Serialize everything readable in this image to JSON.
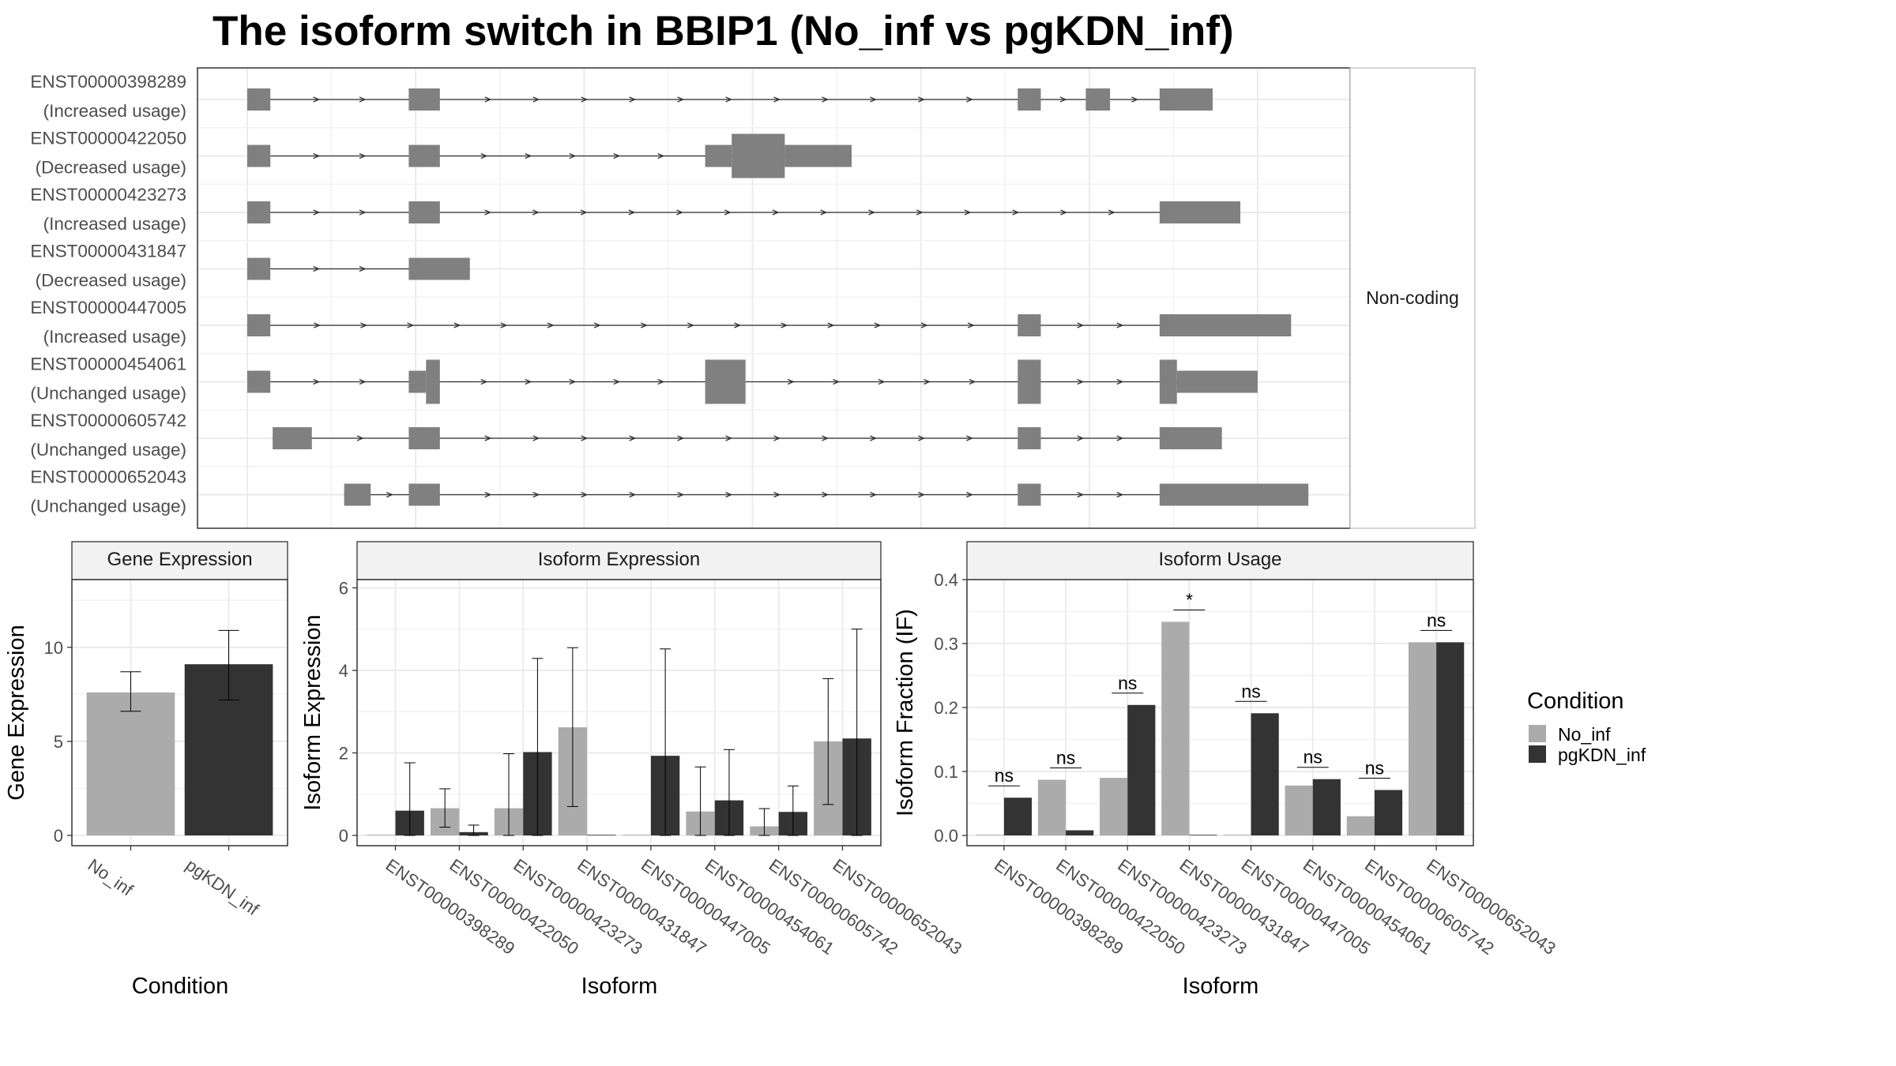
{
  "title": "The isoform switch in BBIP1 (No_inf vs pgKDN_inf)",
  "colors": {
    "no_inf": "#ababab",
    "pgkdn_inf": "#333333",
    "exon": "#808080",
    "intron": "#333333",
    "grid": "#ebebeb",
    "strip_bg": "#f2f2f2"
  },
  "chart_data": [
    {
      "type": "gene-structure",
      "panel_label": "Non-coding",
      "grid": true,
      "transcripts": [
        {
          "id": "ENST00000398289",
          "usage": "(Increased usage)",
          "exons": [
            {
              "s": 0.0,
              "e": 2.0,
              "h": "full"
            },
            {
              "s": 14.0,
              "e": 16.7,
              "h": "full"
            },
            {
              "s": 66.8,
              "e": 68.8,
              "h": "full"
            },
            {
              "s": 72.7,
              "e": 74.8,
              "h": "full"
            },
            {
              "s": 79.1,
              "e": 83.7,
              "h": "full"
            }
          ]
        },
        {
          "id": "ENST00000422050",
          "usage": "(Decreased usage)",
          "exons": [
            {
              "s": 0.0,
              "e": 2.0,
              "h": "full"
            },
            {
              "s": 14.0,
              "e": 16.7,
              "h": "full"
            },
            {
              "s": 39.7,
              "e": 42.0,
              "h": "full"
            },
            {
              "s": 42.0,
              "e": 46.6,
              "h": "tall"
            },
            {
              "s": 46.6,
              "e": 52.4,
              "h": "full"
            }
          ]
        },
        {
          "id": "ENST00000423273",
          "usage": "(Increased usage)",
          "exons": [
            {
              "s": 0.0,
              "e": 2.0,
              "h": "full"
            },
            {
              "s": 14.0,
              "e": 16.7,
              "h": "full"
            },
            {
              "s": 79.1,
              "e": 86.1,
              "h": "full"
            }
          ]
        },
        {
          "id": "ENST00000431847",
          "usage": "(Decreased usage)",
          "exons": [
            {
              "s": 0.0,
              "e": 2.0,
              "h": "full"
            },
            {
              "s": 14.0,
              "e": 19.3,
              "h": "full"
            }
          ]
        },
        {
          "id": "ENST00000447005",
          "usage": "(Increased usage)",
          "exons": [
            {
              "s": 0.0,
              "e": 2.0,
              "h": "full"
            },
            {
              "s": 66.8,
              "e": 68.8,
              "h": "full"
            },
            {
              "s": 79.1,
              "e": 90.5,
              "h": "full"
            }
          ]
        },
        {
          "id": "ENST00000454061",
          "usage": "(Unchanged usage)",
          "exons": [
            {
              "s": 0.0,
              "e": 2.0,
              "h": "full"
            },
            {
              "s": 14.0,
              "e": 15.5,
              "h": "full"
            },
            {
              "s": 15.5,
              "e": 16.7,
              "h": "tall"
            },
            {
              "s": 39.7,
              "e": 43.2,
              "h": "tall"
            },
            {
              "s": 66.8,
              "e": 68.8,
              "h": "tall"
            },
            {
              "s": 79.1,
              "e": 80.6,
              "h": "tall"
            },
            {
              "s": 80.6,
              "e": 87.6,
              "h": "full"
            }
          ]
        },
        {
          "id": "ENST00000605742",
          "usage": "(Unchanged usage)",
          "exons": [
            {
              "s": 2.2,
              "e": 5.6,
              "h": "full"
            },
            {
              "s": 14.0,
              "e": 16.7,
              "h": "full"
            },
            {
              "s": 66.8,
              "e": 68.8,
              "h": "full"
            },
            {
              "s": 79.1,
              "e": 84.5,
              "h": "full"
            }
          ]
        },
        {
          "id": "ENST00000652043",
          "usage": "(Unchanged usage)",
          "exons": [
            {
              "s": 8.4,
              "e": 10.7,
              "h": "full"
            },
            {
              "s": 14.0,
              "e": 16.7,
              "h": "full"
            },
            {
              "s": 66.8,
              "e": 68.8,
              "h": "full"
            },
            {
              "s": 79.1,
              "e": 92.0,
              "h": "full"
            }
          ]
        }
      ]
    },
    {
      "type": "bar",
      "strip_label": "Gene Expression",
      "xlabel": "Condition",
      "ylabel": "Gene Expression",
      "ylim": [
        0,
        13.6
      ],
      "yticks": [
        0,
        5,
        10
      ],
      "categories": [
        "No_inf",
        "pgKDN_inf"
      ],
      "values": [
        7.6,
        9.1
      ],
      "error_low": [
        6.6,
        7.2
      ],
      "error_high": [
        8.7,
        10.9
      ]
    },
    {
      "type": "bar",
      "strip_label": "Isoform Expression",
      "xlabel": "Isoform",
      "ylabel": "Isoform Expression",
      "ylim": [
        0,
        6.2
      ],
      "yticks": [
        0,
        2,
        4,
        6
      ],
      "categories": [
        "ENST00000398289",
        "ENST00000422050",
        "ENST00000423273",
        "ENST00000431847",
        "ENST00000447005",
        "ENST00000454061",
        "ENST00000605742",
        "ENST00000652043"
      ],
      "series": [
        {
          "name": "No_inf",
          "values": [
            0.0,
            0.66,
            0.66,
            2.62,
            0.0,
            0.58,
            0.22,
            2.28
          ],
          "error_low": [
            0.0,
            0.2,
            0.0,
            0.7,
            0.0,
            0.0,
            0.0,
            0.75
          ],
          "error_high": [
            0.0,
            1.13,
            1.98,
            4.55,
            0.0,
            1.66,
            0.65,
            3.8
          ]
        },
        {
          "name": "pgKDN_inf",
          "values": [
            0.6,
            0.08,
            2.02,
            0.0,
            1.93,
            0.85,
            0.57,
            2.35
          ],
          "error_low": [
            0.0,
            0.0,
            0.0,
            0.0,
            0.0,
            0.0,
            0.0,
            0.0
          ],
          "error_high": [
            1.76,
            0.25,
            4.29,
            0.0,
            4.52,
            2.08,
            1.2,
            5.0
          ]
        }
      ]
    },
    {
      "type": "bar",
      "strip_label": "Isoform Usage",
      "xlabel": "Isoform",
      "ylabel": "Isoform Fraction (IF)",
      "ylim": [
        0,
        0.4
      ],
      "yticks": [
        0.0,
        0.1,
        0.2,
        0.3,
        0.4
      ],
      "categories": [
        "ENST00000398289",
        "ENST00000422050",
        "ENST00000423273",
        "ENST00000431847",
        "ENST00000447005",
        "ENST00000454061",
        "ENST00000605742",
        "ENST00000652043"
      ],
      "series": [
        {
          "name": "No_inf",
          "values": [
            0.0,
            0.087,
            0.09,
            0.334,
            0.0,
            0.078,
            0.03,
            0.302
          ]
        },
        {
          "name": "pgKDN_inf",
          "values": [
            0.059,
            0.008,
            0.204,
            0.0,
            0.191,
            0.088,
            0.071,
            0.302
          ]
        }
      ],
      "significance": [
        "ns",
        "ns",
        "ns",
        "*",
        "ns",
        "ns",
        "ns",
        "ns"
      ]
    }
  ],
  "legend": {
    "title": "Condition",
    "entries": [
      "No_inf",
      "pgKDN_inf"
    ]
  }
}
